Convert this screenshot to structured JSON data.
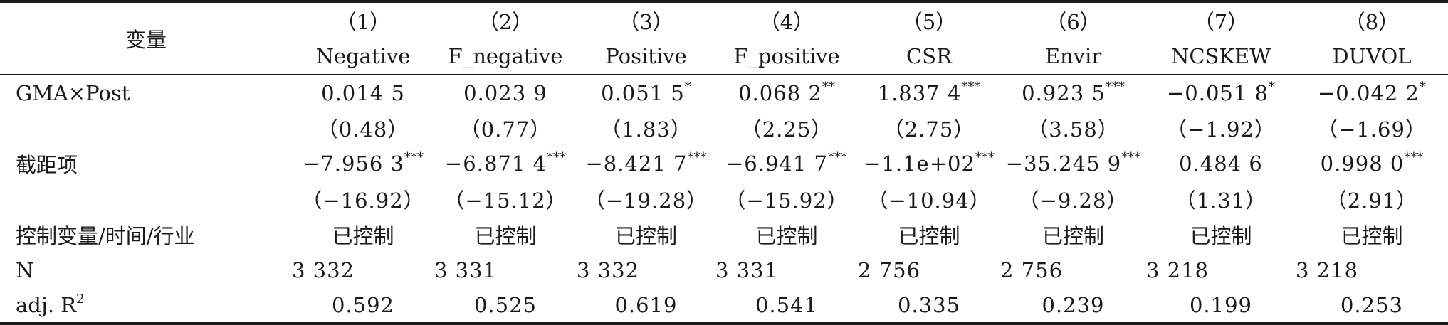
{
  "table": {
    "header": {
      "var_label": "变量",
      "columns": [
        {
          "num": "（1）",
          "name": "Negative"
        },
        {
          "num": "（2）",
          "name": "F_negative"
        },
        {
          "num": "（3）",
          "name": "Positive"
        },
        {
          "num": "（4）",
          "name": "F_positive"
        },
        {
          "num": "（5）",
          "name": "CSR"
        },
        {
          "num": "（6）",
          "name": "Envir"
        },
        {
          "num": "（7）",
          "name": "NCSKEW"
        },
        {
          "num": "（8）",
          "name": "DUVOL"
        }
      ]
    },
    "rows": {
      "gma": {
        "label": "GMA×Post",
        "coef": [
          {
            "v": "0.014 5",
            "s": ""
          },
          {
            "v": "0.023 9",
            "s": ""
          },
          {
            "v": "0.051 5",
            "s": "*"
          },
          {
            "v": "0.068 2",
            "s": "**"
          },
          {
            "v": "1.837 4",
            "s": "***"
          },
          {
            "v": "0.923 5",
            "s": "***"
          },
          {
            "v": "−0.051 8",
            "s": "*"
          },
          {
            "v": "−0.042 2",
            "s": "*"
          }
        ],
        "t": [
          "（0.48）",
          "（0.77）",
          "（1.83）",
          "（2.25）",
          "（2.75）",
          "（3.58）",
          "（−1.92）",
          "（−1.69）"
        ]
      },
      "intercept": {
        "label": "截距项",
        "coef": [
          {
            "v": "−7.956 3",
            "s": "***"
          },
          {
            "v": "−6.871 4",
            "s": "***"
          },
          {
            "v": "−8.421 7",
            "s": "***"
          },
          {
            "v": "−6.941 7",
            "s": "***"
          },
          {
            "v": "−1.1e+02",
            "s": "***"
          },
          {
            "v": "−35.245 9",
            "s": "***"
          },
          {
            "v": "0.484 6",
            "s": ""
          },
          {
            "v": "0.998 0",
            "s": "***"
          }
        ],
        "t": [
          "（−16.92）",
          "（−15.12）",
          "（−19.28）",
          "（−15.92）",
          "（−10.94）",
          "（−9.28）",
          "（1.31）",
          "（2.91）"
        ]
      },
      "controls": {
        "label": "控制变量/时间/行业",
        "values": [
          "已控制",
          "已控制",
          "已控制",
          "已控制",
          "已控制",
          "已控制",
          "已控制",
          "已控制"
        ]
      },
      "n": {
        "label": "N",
        "values": [
          "3 332",
          "3 331",
          "3 332",
          "3 331",
          "2 756",
          "2 756",
          "3 218",
          "3 218"
        ]
      },
      "r2": {
        "label_main": "adj. R",
        "label_sup": "2",
        "values": [
          "0.592",
          "0.525",
          "0.619",
          "0.541",
          "0.335",
          "0.239",
          "0.199",
          "0.253"
        ]
      }
    }
  }
}
